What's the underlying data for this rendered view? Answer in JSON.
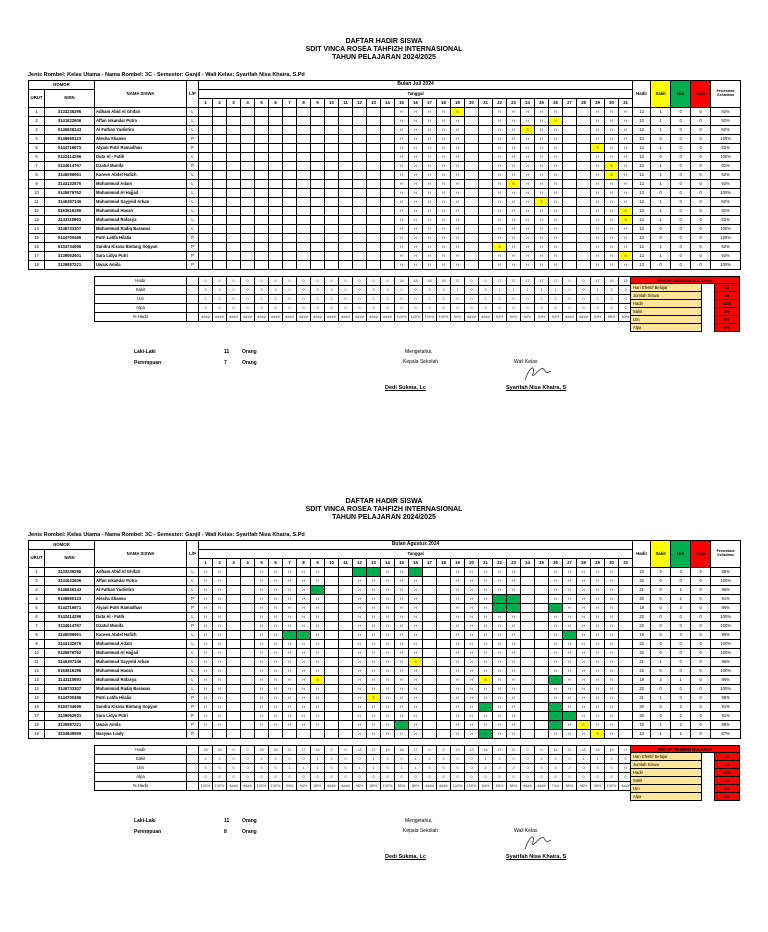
{
  "colors": {
    "sakit": "#ffff00",
    "izin": "#00b050",
    "alpa": "#ff0000",
    "rekap_label_bg": "#ffe599",
    "rekap_value_bg": "#ff0000"
  },
  "title": {
    "line1": "DAFTAR HADIR SISWA",
    "line2": "SDIT VINCA ROSEA TAHFIZH INTERNASIONAL",
    "line3": "TAHUN PELAJARAN 2024/2025"
  },
  "info_line": "Jenis Rombel: Kelas Utama - Nama Rombel: 3C - Semester: Ganjil - Wali Kelas: Syarifah Nisa Khaira, S.Pd",
  "headers": {
    "nomor": "NOMOR",
    "urut": "URUT",
    "nisn": "NISN",
    "nama": "NAMA SISWA",
    "lp": "L/P",
    "tanggal": "Tanggal",
    "hadir": "Hadir",
    "sakit": "Sakit",
    "izin": "Izin",
    "alpa": "Alpa",
    "persentase": "Persentase Kehadiran"
  },
  "days": [
    "1",
    "2",
    "3",
    "4",
    "5",
    "6",
    "7",
    "8",
    "9",
    "10",
    "11",
    "12",
    "13",
    "14",
    "15",
    "16",
    "17",
    "18",
    "19",
    "20",
    "21",
    "22",
    "23",
    "24",
    "25",
    "26",
    "27",
    "28",
    "29",
    "30",
    "31"
  ],
  "footer_labels": [
    "Hadir",
    "Sakit",
    "Izin",
    "Alpa",
    "% Hadir"
  ],
  "rekap_title": "REKAP ABSENSI BULANAN",
  "rekap_labels": [
    "Hari Efektif Belajar",
    "Jumlah Siswa",
    "Hadir",
    "Sakit",
    "Izin",
    "Alpa"
  ],
  "sign": {
    "mengetahui": "Mengetahui,",
    "kepala": "Kepala Sekolah",
    "wali": "Wali Kelas",
    "kepala_name": "Dedi Sukma, Lc",
    "wali_name": "Syarifah Nisa Khaira, S",
    "laki": "Laki-Laki",
    "perempuan": "Perempuan",
    "orang": "Orang"
  },
  "months": [
    {
      "name": "Bulan Juli 2024",
      "laki_count": "11",
      "perempuan_count": "7",
      "rekap_values": [
        "13",
        "18",
        "92%",
        "2%",
        "0%",
        "0%"
      ],
      "students": [
        {
          "no": "1",
          "nisn": "3133236296",
          "name": "Adham Abid Al Ghifari",
          "lp": "L",
          "att": "..............HHHHS..HHHHH..HHH",
          "hadir": "12",
          "sakit": "1",
          "izin": "0",
          "alpa": "0",
          "pct": "92%"
        },
        {
          "no": "2",
          "nisn": "3141622606",
          "name": "Affan Iskandar Putra",
          "lp": "L",
          "att": "..............HHHHH..HHHHS..HHH",
          "hadir": "12",
          "sakit": "1",
          "izin": "0",
          "alpa": "0",
          "pct": "92%"
        },
        {
          "no": "3",
          "nisn": "0146626143",
          "name": "Al Fathan Yudistira",
          "lp": "L",
          "att": "..............HHHHH..HHSHH..HHH",
          "hadir": "12",
          "sakit": "1",
          "izin": "0",
          "alpa": "0",
          "pct": "92%"
        },
        {
          "no": "4",
          "nisn": "0145660123",
          "name": "Alesha Shanea",
          "lp": "P",
          "att": "..............HHHHH..HHHHH..HHH",
          "hadir": "13",
          "sakit": "0",
          "izin": "0",
          "alpa": "0",
          "pct": "100%"
        },
        {
          "no": "5",
          "nisn": "0144716671",
          "name": "Alyani Putri Ramadhan",
          "lp": "P",
          "att": "..............HHHHH..HHHHH..SHH",
          "hadir": "12",
          "sakit": "1",
          "izin": "0",
          "alpa": "0",
          "pct": "92%"
        },
        {
          "no": "6",
          "nisn": "0142414296",
          "name": "Duta Al - Fatih",
          "lp": "L",
          "att": "..............HHHHH..HHHHH..HHH",
          "hadir": "13",
          "sakit": "0",
          "izin": "0",
          "alpa": "0",
          "pct": "100%"
        },
        {
          "no": "7",
          "nisn": "3134614767",
          "name": "Izzatul Munifa",
          "lp": "P",
          "att": "..............HHHHH..HHHHH..HSH",
          "hadir": "12",
          "sakit": "1",
          "izin": "0",
          "alpa": "0",
          "pct": "92%"
        },
        {
          "no": "8",
          "nisn": "3145096961",
          "name": "Kareen Abdel Hafizh",
          "lp": "L",
          "att": "..............HHHHH..HHHHH..HSH",
          "hadir": "12",
          "sakit": "1",
          "izin": "0",
          "alpa": "0",
          "pct": "92%"
        },
        {
          "no": "9",
          "nisn": "3144132676",
          "name": "Muhammad Adam",
          "lp": "L",
          "att": "..............HHHHH..HSHHH..HHH",
          "hadir": "12",
          "sakit": "1",
          "izin": "0",
          "alpa": "0",
          "pct": "92%"
        },
        {
          "no": "10",
          "nisn": "0145676762",
          "name": "Muhammad Al Hajjad",
          "lp": "L",
          "att": "..............HHHHH..HHHHH..HHH",
          "hadir": "13",
          "sakit": "0",
          "izin": "0",
          "alpa": "0",
          "pct": "100%"
        },
        {
          "no": "11",
          "nisn": "3146397146",
          "name": "Muhammad Sayyeid Arkan",
          "lp": "L",
          "att": "..............HHHHH..HHHSH..HHH",
          "hadir": "12",
          "sakit": "1",
          "izin": "0",
          "alpa": "0",
          "pct": "92%"
        },
        {
          "no": "12",
          "nisn": "0163616196",
          "name": "Muhammad Hasan",
          "lp": "L",
          "att": "..............HHHHH..HHHHH..HHS",
          "hadir": "12",
          "sakit": "1",
          "izin": "0",
          "alpa": "0",
          "pct": "92%"
        },
        {
          "no": "13",
          "nisn": "3143110693",
          "name": "Muhammad Rafasya",
          "lp": "L",
          "att": "..............HHHHH..HHHHH..HHS",
          "hadir": "12",
          "sakit": "1",
          "izin": "0",
          "alpa": "0",
          "pct": "92%"
        },
        {
          "no": "14",
          "nisn": "3146733307",
          "name": "Muhammad Radiq Barawas",
          "lp": "L",
          "att": "..............HHHHH..HHHHH..HHH",
          "hadir": "13",
          "sakit": "0",
          "izin": "0",
          "alpa": "0",
          "pct": "100%"
        },
        {
          "no": "15",
          "nisn": "0144700496",
          "name": "Putri Latifa Hilalia",
          "lp": "P",
          "att": "..............HHHHH..HHHHH..HHH",
          "hadir": "13",
          "sakit": "0",
          "izin": "0",
          "alpa": "0",
          "pct": "100%"
        },
        {
          "no": "16",
          "nisn": "0134734696",
          "name": "Sandra Kirana Bintang Sopyan",
          "lp": "P",
          "att": "..............HHHHH..SHHHH..HHH",
          "hadir": "12",
          "sakit": "1",
          "izin": "0",
          "alpa": "0",
          "pct": "92%"
        },
        {
          "no": "17",
          "nisn": "3139062601",
          "name": "Sara Lidya Putri",
          "lp": "P",
          "att": "..............HHHHH..HHHHH..HHS",
          "hadir": "12",
          "sakit": "1",
          "izin": "0",
          "alpa": "0",
          "pct": "92%"
        },
        {
          "no": "18",
          "nisn": "3139987221",
          "name": "Uwais Amila",
          "lp": "P",
          "att": "..............HHHHH..HHHHH..HHH",
          "hadir": "13",
          "sakit": "0",
          "izin": "0",
          "alpa": "0",
          "pct": "100%"
        }
      ],
      "footer": {
        "hadir": [
          "0",
          "0",
          "0",
          "0",
          "0",
          "0",
          "0",
          "0",
          "0",
          "0",
          "0",
          "0",
          "0",
          "0",
          "18",
          "18",
          "18",
          "18",
          "17",
          "0",
          "0",
          "17",
          "17",
          "17",
          "17",
          "17",
          "0",
          "0",
          "17",
          "16",
          "15"
        ],
        "sakit": [
          "0",
          "0",
          "0",
          "0",
          "0",
          "0",
          "0",
          "0",
          "0",
          "0",
          "0",
          "0",
          "0",
          "0",
          "0",
          "0",
          "0",
          "0",
          "1",
          "0",
          "0",
          "1",
          "1",
          "1",
          "1",
          "1",
          "0",
          "0",
          "1",
          "2",
          "3"
        ],
        "izin": [
          "0",
          "0",
          "0",
          "0",
          "0",
          "0",
          "0",
          "0",
          "0",
          "0",
          "0",
          "0",
          "0",
          "0",
          "0",
          "0",
          "0",
          "0",
          "0",
          "0",
          "0",
          "0",
          "0",
          "0",
          "0",
          "0",
          "0",
          "0",
          "0",
          "0",
          "0"
        ],
        "alpa": [
          "0",
          "0",
          "0",
          "0",
          "0",
          "0",
          "0",
          "0",
          "0",
          "0",
          "0",
          "0",
          "0",
          "0",
          "0",
          "0",
          "0",
          "0",
          "0",
          "0",
          "0",
          "0",
          "0",
          "0",
          "0",
          "0",
          "0",
          "0",
          "0",
          "0",
          "0"
        ],
        "pct": [
          "####",
          "####",
          "####",
          "####",
          "####",
          "####",
          "####",
          "####",
          "####",
          "####",
          "####",
          "####",
          "####",
          "####",
          "100%",
          "100%",
          "100%",
          "100%",
          "94%",
          "####",
          "####",
          "94%",
          "94%",
          "94%",
          "94%",
          "94%",
          "####",
          "####",
          "94%",
          "89%",
          "83%"
        ]
      }
    },
    {
      "name": "Bulan Agustus 2024",
      "laki_count": "11",
      "perempuan_count": "8",
      "rekap_values": [
        "22",
        "19",
        "92%",
        "1%",
        "5%",
        "0%"
      ],
      "students": [
        {
          "no": "1",
          "nisn": "3133236296",
          "name": "Adham Abid Al Ghifari",
          "lp": "L",
          "att": "HH..HHHHH..IIHHI..HHHHH..HHHHH.",
          "hadir": "19",
          "sakit": "0",
          "izin": "3",
          "alpa": "0",
          "pct": "86%"
        },
        {
          "no": "2",
          "nisn": "3141622606",
          "name": "Affan Iskandar Putra",
          "lp": "L",
          "att": "HH..HHHHH..HHHHH..HHHHH..HHHHH.",
          "hadir": "22",
          "sakit": "0",
          "izin": "0",
          "alpa": "0",
          "pct": "100%"
        },
        {
          "no": "3",
          "nisn": "0146626143",
          "name": "Al Fathan Yudistira",
          "lp": "L",
          "att": "HH..HHHHI..HHHHH..HHHHH..HHHHH.",
          "hadir": "21",
          "sakit": "0",
          "izin": "1",
          "alpa": "0",
          "pct": "95%"
        },
        {
          "no": "4",
          "nisn": "0145660123",
          "name": "Alesha Shanea",
          "lp": "P",
          "att": "HH..HHHHH..HHHHH..HHHII..HHHHH.",
          "hadir": "20",
          "sakit": "0",
          "izin": "2",
          "alpa": "0",
          "pct": "91%"
        },
        {
          "no": "5",
          "nisn": "0144716671",
          "name": "Alyani Putri Ramadhan",
          "lp": "P",
          "att": "HH..HHHHH..HHHHH..HHHII..IHHHH.",
          "hadir": "19",
          "sakit": "0",
          "izin": "3",
          "alpa": "0",
          "pct": "86%"
        },
        {
          "no": "6",
          "nisn": "0142414296",
          "name": "Duta Al - Fatih",
          "lp": "L",
          "att": "HH..HHHHH..HHHHH..HHHHH..HHHHH.",
          "hadir": "22",
          "sakit": "0",
          "izin": "0",
          "alpa": "0",
          "pct": "100%"
        },
        {
          "no": "7",
          "nisn": "3134614767",
          "name": "Izzatul Munifa",
          "lp": "P",
          "att": "HH..HHHHH..HHHHH..HHHHH..HHHHH.",
          "hadir": "22",
          "sakit": "0",
          "izin": "0",
          "alpa": "0",
          "pct": "100%"
        },
        {
          "no": "8",
          "nisn": "3145096961",
          "name": "Kareen Abdel Hafizh",
          "lp": "L",
          "att": "HH..HHIIH..HHHHH..HHHHH..HIHHH.",
          "hadir": "19",
          "sakit": "0",
          "izin": "3",
          "alpa": "0",
          "pct": "86%"
        },
        {
          "no": "9",
          "nisn": "3144132676",
          "name": "Muhammad Adam",
          "lp": "L",
          "att": "HH..HHHHH..HHHHH..HHHHH..HHHHH.",
          "hadir": "22",
          "sakit": "0",
          "izin": "0",
          "alpa": "0",
          "pct": "100%"
        },
        {
          "no": "10",
          "nisn": "0145676762",
          "name": "Muhammad Al Hajjad",
          "lp": "L",
          "att": "HH..HHHHH..HHHHH..HHHHH..HHHHH.",
          "hadir": "22",
          "sakit": "0",
          "izin": "0",
          "alpa": "0",
          "pct": "100%"
        },
        {
          "no": "11",
          "nisn": "3146397146",
          "name": "Muhammad Sayyeid Arkan",
          "lp": "L",
          "att": "HH..HHHHH..HHHHS..HHHHH..HHHHH.",
          "hadir": "21",
          "sakit": "1",
          "izin": "0",
          "alpa": "0",
          "pct": "95%"
        },
        {
          "no": "12",
          "nisn": "0163616196",
          "name": "Muhammad Hasan",
          "lp": "L",
          "att": "HH..HHHHH..HHHHH..HHHHH..HHHHH.",
          "hadir": "22",
          "sakit": "0",
          "izin": "0",
          "alpa": "0",
          "pct": "100%"
        },
        {
          "no": "13",
          "nisn": "3143110693",
          "name": "Muhammad Rafasya",
          "lp": "L",
          "att": "HH..HHHHS..HHHHH..HHSHH..IHHHH.",
          "hadir": "19",
          "sakit": "2",
          "izin": "1",
          "alpa": "0",
          "pct": "86%"
        },
        {
          "no": "14",
          "nisn": "3146733307",
          "name": "Muhammad Radiq Barawas",
          "lp": "L",
          "att": "HH..HHHHH..HHHHH..HHHHH..HHHHH.",
          "hadir": "22",
          "sakit": "0",
          "izin": "0",
          "alpa": "0",
          "pct": "100%"
        },
        {
          "no": "15",
          "nisn": "0144700496",
          "name": "Putri Latifa Hilalia",
          "lp": "P",
          "att": "HH..HHHHH..HSHHH..HHHHH..HHHHH.",
          "hadir": "21",
          "sakit": "1",
          "izin": "0",
          "alpa": "0",
          "pct": "95%"
        },
        {
          "no": "16",
          "nisn": "0134734696",
          "name": "Sandra Kirana Bintang Sopyan",
          "lp": "P",
          "att": "HH..HHHHH..HHHHH..HHIHH..IHHHH.",
          "hadir": "20",
          "sakit": "0",
          "izin": "2",
          "alpa": "0",
          "pct": "91%"
        },
        {
          "no": "17",
          "nisn": "3139062601",
          "name": "Sara Lidya Putri",
          "lp": "P",
          "att": "HH..HHHHH..HHHHH..HHHHH..IIHHH.",
          "hadir": "20",
          "sakit": "0",
          "izin": "2",
          "alpa": "0",
          "pct": "91%"
        },
        {
          "no": "18",
          "nisn": "3139987221",
          "name": "Uwais Amila",
          "lp": "P",
          "att": "HH..HHHHH..HHHIH..HHHHH..IHSHH.",
          "hadir": "19",
          "sakit": "1",
          "izin": "2",
          "alpa": "0",
          "pct": "86%"
        },
        {
          "no": "19",
          "nisn": "3234849559",
          "name": "Nasywa Liady",
          "lp": "P",
          "att": "...........HHHHH..HHIHH..HHHSH.",
          "hadir": "13",
          "sakit": "1",
          "izin": "1",
          "alpa": "0",
          "pct": "87%"
        }
      ],
      "footer": {
        "hadir": [
          "18",
          "18",
          "0",
          "0",
          "18",
          "18",
          "17",
          "17",
          "16",
          "0",
          "0",
          "18",
          "17",
          "19",
          "18",
          "17",
          "0",
          "0",
          "19",
          "19",
          "16",
          "17",
          "17",
          "0",
          "0",
          "14",
          "17",
          "18",
          "18",
          "19",
          "0"
        ],
        "sakit": [
          "0",
          "0",
          "0",
          "0",
          "0",
          "0",
          "0",
          "0",
          "1",
          "0",
          "0",
          "0",
          "1",
          "0",
          "0",
          "1",
          "0",
          "0",
          "0",
          "0",
          "1",
          "0",
          "0",
          "0",
          "0",
          "0",
          "0",
          "1",
          "1",
          "0",
          "0"
        ],
        "izin": [
          "0",
          "0",
          "0",
          "0",
          "0",
          "0",
          "1",
          "1",
          "1",
          "0",
          "0",
          "1",
          "1",
          "0",
          "1",
          "1",
          "0",
          "0",
          "0",
          "0",
          "2",
          "2",
          "2",
          "0",
          "0",
          "5",
          "2",
          "0",
          "0",
          "0",
          "0"
        ],
        "alpa": [
          "0",
          "0",
          "0",
          "0",
          "0",
          "0",
          "0",
          "0",
          "0",
          "0",
          "0",
          "0",
          "0",
          "0",
          "0",
          "0",
          "0",
          "0",
          "0",
          "0",
          "0",
          "0",
          "0",
          "0",
          "0",
          "0",
          "0",
          "0",
          "0",
          "0",
          "0"
        ],
        "pct": [
          "100%",
          "100%",
          "####",
          "####",
          "100%",
          "100%",
          "94%",
          "94%",
          "89%",
          "####",
          "####",
          "95%",
          "89%",
          "100%",
          "95%",
          "89%",
          "####",
          "####",
          "100%",
          "100%",
          "84%",
          "89%",
          "89%",
          "####",
          "####",
          "74%",
          "89%",
          "95%",
          "95%",
          "100%",
          "####"
        ]
      }
    }
  ]
}
